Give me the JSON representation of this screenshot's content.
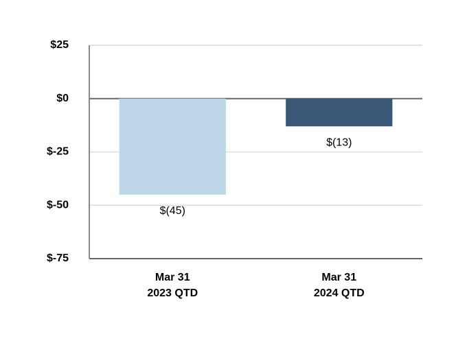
{
  "chart_data": {
    "type": "bar",
    "categories": [
      [
        "Mar 31",
        "2023 QTD"
      ],
      [
        "Mar 31",
        "2024 QTD"
      ]
    ],
    "values": [
      -45,
      -13
    ],
    "value_labels": [
      "$(45)",
      "$(13)"
    ],
    "colors": [
      "#bdd7e9",
      "#3a5978"
    ],
    "ylim": [
      -75,
      25
    ],
    "yticks": [
      {
        "value": 25,
        "label": "$25"
      },
      {
        "value": 0,
        "label": "$0"
      },
      {
        "value": -25,
        "label": "$-25"
      },
      {
        "value": -50,
        "label": "$-50"
      },
      {
        "value": -75,
        "label": "$-75"
      }
    ],
    "grid": true
  }
}
